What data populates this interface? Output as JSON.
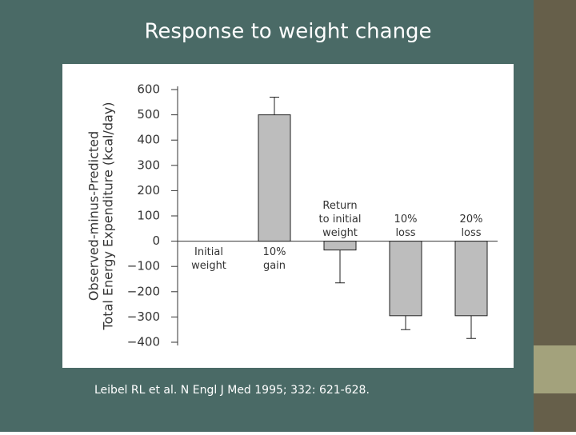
{
  "slide_title": "Response to weight change",
  "chart_data": {
    "type": "bar",
    "ylabel": [
      "Observed-minus-Predicted",
      "Total Energy Expenditure (kcal/day)"
    ],
    "categories": [
      [
        "Initial",
        "weight"
      ],
      [
        "10%",
        "gain"
      ],
      [
        "Return",
        "to initial",
        "weight"
      ],
      [
        "10%",
        "loss"
      ],
      [
        "20%",
        "loss"
      ]
    ],
    "values": [
      0,
      500,
      -35,
      -295,
      -295
    ],
    "errors": [
      null,
      70,
      130,
      55,
      90
    ],
    "color": "#bdbdbd",
    "ylim": [
      -400,
      600
    ],
    "yticks": [
      600,
      500,
      400,
      300,
      200,
      100,
      0,
      {
        "value": -100,
        "label": "−100"
      },
      {
        "value": -200,
        "label": "−200"
      },
      {
        "value": -300,
        "label": "−300"
      },
      {
        "value": -400,
        "label": "−400"
      }
    ]
  },
  "source": "Leibel RL et al. N Engl J Med 1995; 332: 621-628."
}
